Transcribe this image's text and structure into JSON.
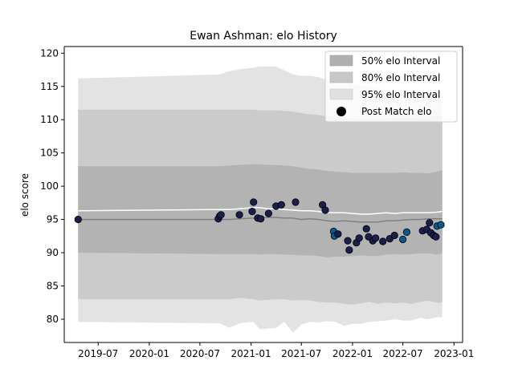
{
  "chart_data": {
    "type": "line",
    "title": "Ewan Ashman: elo History",
    "xlabel": "",
    "ylabel": "elo score",
    "xlim": [
      "2019-03-01",
      "2023-02-01"
    ],
    "ylim": [
      76.5,
      121
    ],
    "x_ticks": [
      "2019-07",
      "2020-01",
      "2020-07",
      "2021-01",
      "2021-07",
      "2022-01",
      "2022-07",
      "2023-01"
    ],
    "y_ticks": [
      80,
      85,
      90,
      95,
      100,
      105,
      110,
      115,
      120
    ],
    "grid": false,
    "legend_position": "top-right",
    "legend": [
      {
        "label": "50% elo Interval",
        "kind": "band",
        "color": "#b0b0b0"
      },
      {
        "label": "80% elo Interval",
        "kind": "band",
        "color": "#c8c8c8"
      },
      {
        "label": "95% elo Interval",
        "kind": "band",
        "color": "#e0e0e0"
      },
      {
        "label": "Post Match elo",
        "kind": "marker",
        "color": "#000000"
      }
    ],
    "colors": {
      "band50": "#b3b3b3",
      "band80": "#cbcbcb",
      "band95": "#e3e3e3",
      "mean_line": "#808080",
      "upper_line": "#ffffff",
      "marker_dark": "#1a1f4d",
      "marker_blue": "#0b5a8e"
    },
    "band_x": [
      "2019-04-20",
      "2020-09-10",
      "2020-10-15",
      "2020-11-20",
      "2021-01-10",
      "2021-02-01",
      "2021-03-01",
      "2021-04-01",
      "2021-05-01",
      "2021-06-01",
      "2021-07-01",
      "2021-08-01",
      "2021-09-01",
      "2021-10-01",
      "2021-11-01",
      "2021-12-01",
      "2022-01-01",
      "2022-02-01",
      "2022-03-01",
      "2022-04-01",
      "2022-05-01",
      "2022-06-01",
      "2022-07-01",
      "2022-08-01",
      "2022-09-01",
      "2022-10-01",
      "2022-11-01",
      "2022-11-20"
    ],
    "bands": {
      "q95_low": [
        79.6,
        79.4,
        78.7,
        79.4,
        79.6,
        78.5,
        78.6,
        78.7,
        79.6,
        78.0,
        79.2,
        79.6,
        79.5,
        79.7,
        79.6,
        79.0,
        79.3,
        79.3,
        79.6,
        79.7,
        79.8,
        80.0,
        79.8,
        79.8,
        80.2,
        80.0,
        80.3,
        80.3
      ],
      "q80_low": [
        83.0,
        83.0,
        83.0,
        83.2,
        83.0,
        82.8,
        82.9,
        83.0,
        83.0,
        82.8,
        82.9,
        82.8,
        82.6,
        82.5,
        82.5,
        82.3,
        82.2,
        82.4,
        82.6,
        82.3,
        82.5,
        82.4,
        82.5,
        82.3,
        82.6,
        82.8,
        82.5,
        82.5
      ],
      "q50_low": [
        90.0,
        89.8,
        89.8,
        89.8,
        89.8,
        89.7,
        89.8,
        89.8,
        89.7,
        89.7,
        89.6,
        89.6,
        89.5,
        89.3,
        89.4,
        89.4,
        89.5,
        89.6,
        89.5,
        89.5,
        89.7,
        89.8,
        89.7,
        89.8,
        89.9,
        89.9,
        89.7,
        89.9
      ],
      "mean": [
        95.0,
        95.0,
        95.0,
        95.1,
        95.2,
        95.3,
        95.3,
        95.3,
        95.2,
        95.2,
        95.0,
        95.1,
        95.0,
        94.8,
        94.7,
        94.8,
        94.7,
        94.6,
        94.6,
        94.6,
        94.8,
        94.8,
        94.9,
        95.0,
        95.0,
        95.1,
        95.1,
        95.1
      ],
      "q50_up": [
        103.0,
        103.0,
        103.1,
        103.2,
        103.3,
        103.3,
        103.2,
        103.2,
        103.1,
        103.0,
        102.8,
        102.6,
        102.5,
        102.3,
        102.2,
        102.1,
        102.0,
        102.0,
        102.0,
        102.0,
        102.0,
        102.0,
        102.1,
        102.0,
        102.0,
        101.9,
        102.2,
        102.4
      ],
      "q80_up": [
        111.5,
        111.5,
        111.5,
        111.5,
        111.5,
        111.4,
        111.4,
        111.4,
        111.3,
        111.2,
        111.0,
        110.8,
        110.7,
        110.5,
        110.4,
        110.3,
        110.2,
        110.2,
        110.2,
        110.2,
        110.2,
        110.3,
        110.3,
        110.3,
        110.3,
        110.4,
        110.5,
        110.5
      ],
      "q95_up": [
        116.2,
        116.8,
        117.3,
        117.6,
        117.8,
        118.0,
        118.0,
        118.0,
        117.4,
        116.8,
        116.6,
        116.6,
        116.4,
        116.0,
        115.9,
        115.7,
        115.4,
        115.2,
        115.0,
        114.8,
        114.3,
        114.0,
        113.6,
        114.0,
        114.3,
        114.0,
        114.2,
        114.2
      ],
      "upper_line": [
        96.3,
        96.5,
        96.5,
        96.6,
        96.8,
        96.8,
        96.6,
        96.6,
        96.5,
        96.4,
        96.3,
        96.3,
        96.2,
        96.0,
        96.0,
        96.0,
        95.9,
        95.8,
        95.8,
        95.9,
        96.0,
        95.9,
        96.0,
        96.0,
        96.0,
        96.0,
        96.1,
        96.2
      ]
    },
    "points": [
      {
        "date": "2019-04-20",
        "elo": 95.0,
        "color": "dark"
      },
      {
        "date": "2020-09-05",
        "elo": 95.1,
        "color": "dark"
      },
      {
        "date": "2020-09-10",
        "elo": 95.5,
        "color": "dark"
      },
      {
        "date": "2020-09-15",
        "elo": 95.7,
        "color": "dark"
      },
      {
        "date": "2020-11-20",
        "elo": 95.7,
        "color": "dark"
      },
      {
        "date": "2021-01-05",
        "elo": 96.2,
        "color": "dark"
      },
      {
        "date": "2021-01-10",
        "elo": 97.6,
        "color": "dark"
      },
      {
        "date": "2021-01-25",
        "elo": 95.2,
        "color": "dark"
      },
      {
        "date": "2021-02-05",
        "elo": 95.1,
        "color": "dark"
      },
      {
        "date": "2021-03-05",
        "elo": 95.9,
        "color": "dark"
      },
      {
        "date": "2021-04-01",
        "elo": 97.0,
        "color": "dark"
      },
      {
        "date": "2021-04-20",
        "elo": 97.2,
        "color": "dark"
      },
      {
        "date": "2021-06-10",
        "elo": 97.6,
        "color": "dark"
      },
      {
        "date": "2021-09-15",
        "elo": 97.2,
        "color": "dark"
      },
      {
        "date": "2021-09-25",
        "elo": 96.4,
        "color": "dark"
      },
      {
        "date": "2021-10-25",
        "elo": 93.2,
        "color": "blue"
      },
      {
        "date": "2021-10-28",
        "elo": 92.5,
        "color": "blue"
      },
      {
        "date": "2021-11-10",
        "elo": 92.8,
        "color": "dark"
      },
      {
        "date": "2021-12-15",
        "elo": 91.8,
        "color": "dark"
      },
      {
        "date": "2021-12-20",
        "elo": 90.4,
        "color": "dark"
      },
      {
        "date": "2022-01-15",
        "elo": 91.5,
        "color": "dark"
      },
      {
        "date": "2022-01-25",
        "elo": 92.2,
        "color": "dark"
      },
      {
        "date": "2022-02-20",
        "elo": 93.6,
        "color": "dark"
      },
      {
        "date": "2022-02-28",
        "elo": 92.4,
        "color": "dark"
      },
      {
        "date": "2022-03-15",
        "elo": 91.8,
        "color": "dark"
      },
      {
        "date": "2022-03-25",
        "elo": 92.2,
        "color": "dark"
      },
      {
        "date": "2022-04-20",
        "elo": 91.7,
        "color": "dark"
      },
      {
        "date": "2022-05-15",
        "elo": 92.1,
        "color": "dark"
      },
      {
        "date": "2022-06-01",
        "elo": 92.6,
        "color": "dark"
      },
      {
        "date": "2022-07-01",
        "elo": 92.0,
        "color": "blue"
      },
      {
        "date": "2022-07-15",
        "elo": 93.1,
        "color": "blue"
      },
      {
        "date": "2022-09-10",
        "elo": 93.3,
        "color": "dark"
      },
      {
        "date": "2022-09-25",
        "elo": 93.5,
        "color": "dark"
      },
      {
        "date": "2022-10-05",
        "elo": 94.5,
        "color": "dark"
      },
      {
        "date": "2022-10-10",
        "elo": 93.0,
        "color": "dark"
      },
      {
        "date": "2022-10-20",
        "elo": 92.6,
        "color": "dark"
      },
      {
        "date": "2022-10-28",
        "elo": 92.4,
        "color": "dark"
      },
      {
        "date": "2022-11-01",
        "elo": 94.0,
        "color": "blue"
      },
      {
        "date": "2022-11-15",
        "elo": 94.2,
        "color": "blue"
      }
    ]
  }
}
